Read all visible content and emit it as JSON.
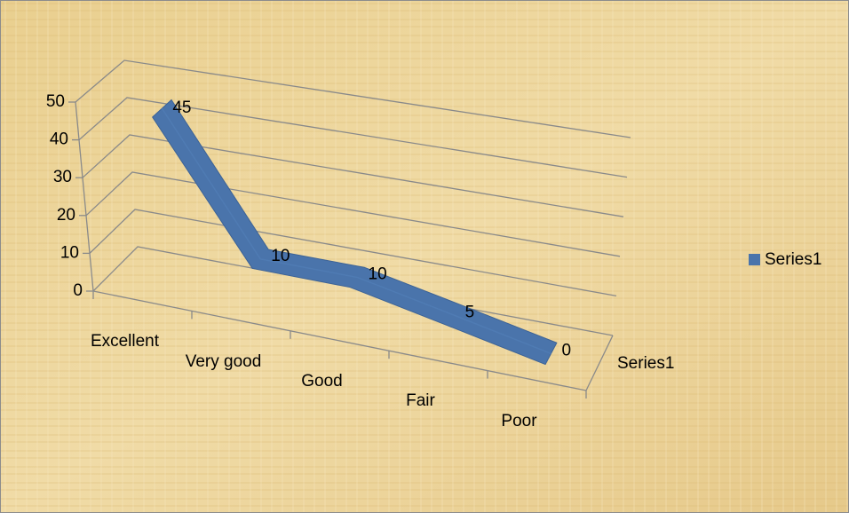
{
  "chart_data": {
    "type": "line3d",
    "categories": [
      "Excellent",
      "Very good",
      "Good",
      "Fair",
      "Poor"
    ],
    "series": [
      {
        "name": "Series1",
        "color": "#4a74ab",
        "values": [
          45,
          10,
          10,
          5,
          0
        ]
      }
    ],
    "ylim": [
      0,
      50
    ],
    "yticks": [
      0,
      10,
      20,
      30,
      40,
      50
    ],
    "grid": true,
    "legend": "right"
  }
}
